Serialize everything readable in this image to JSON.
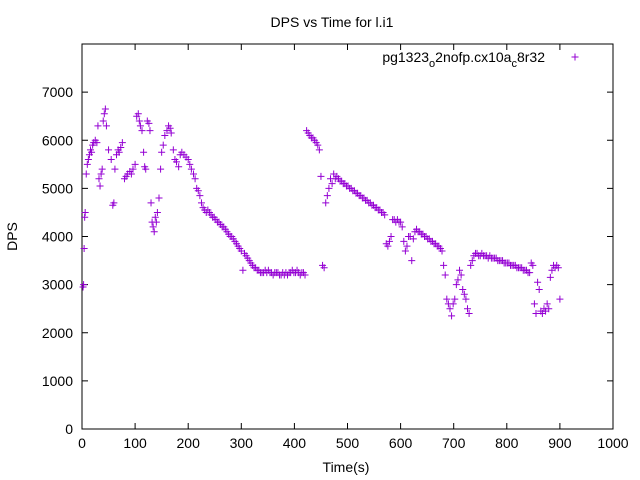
{
  "chart_data": {
    "type": "scatter",
    "title": "DPS vs Time for l.i1",
    "xlabel": "Time(s)",
    "ylabel": "DPS",
    "xlim": [
      0,
      1000
    ],
    "ylim": [
      0,
      8000
    ],
    "xticks": [
      0,
      100,
      200,
      300,
      400,
      500,
      600,
      700,
      800,
      900,
      1000
    ],
    "yticks": [
      0,
      1000,
      2000,
      3000,
      4000,
      5000,
      6000,
      7000
    ],
    "grid": false,
    "legend_position": "top-right",
    "marker": "+",
    "series": [
      {
        "name": "pg1323o2nofp.cx10ac8r32",
        "legend_parts": [
          {
            "text": "pg1323",
            "sub": false
          },
          {
            "text": "o",
            "sub": true
          },
          {
            "text": "2nofp.cx10a",
            "sub": false
          },
          {
            "text": "c",
            "sub": true
          },
          {
            "text": "8r32",
            "sub": false
          }
        ],
        "color": "#9400d3",
        "points": [
          [
            2,
            2950
          ],
          [
            3,
            3000
          ],
          [
            4,
            3750
          ],
          [
            5,
            4400
          ],
          [
            6,
            4500
          ],
          [
            8,
            5300
          ],
          [
            10,
            5500
          ],
          [
            12,
            5600
          ],
          [
            14,
            5700
          ],
          [
            16,
            5800
          ],
          [
            18,
            5750
          ],
          [
            20,
            5900
          ],
          [
            22,
            5950
          ],
          [
            25,
            6000
          ],
          [
            28,
            5950
          ],
          [
            30,
            6300
          ],
          [
            32,
            5200
          ],
          [
            34,
            5050
          ],
          [
            36,
            5300
          ],
          [
            38,
            5400
          ],
          [
            40,
            6400
          ],
          [
            42,
            6550
          ],
          [
            44,
            6650
          ],
          [
            46,
            6300
          ],
          [
            50,
            5800
          ],
          [
            55,
            5600
          ],
          [
            58,
            4650
          ],
          [
            60,
            4700
          ],
          [
            62,
            5400
          ],
          [
            65,
            5700
          ],
          [
            68,
            5800
          ],
          [
            70,
            5750
          ],
          [
            73,
            5850
          ],
          [
            76,
            5950
          ],
          [
            80,
            5200
          ],
          [
            83,
            5250
          ],
          [
            86,
            5300
          ],
          [
            90,
            5350
          ],
          [
            93,
            5300
          ],
          [
            96,
            5400
          ],
          [
            100,
            5500
          ],
          [
            103,
            6500
          ],
          [
            106,
            6550
          ],
          [
            108,
            6400
          ],
          [
            110,
            6300
          ],
          [
            113,
            6200
          ],
          [
            116,
            5750
          ],
          [
            118,
            5450
          ],
          [
            120,
            5400
          ],
          [
            123,
            6400
          ],
          [
            126,
            6350
          ],
          [
            128,
            6200
          ],
          [
            130,
            4700
          ],
          [
            132,
            4300
          ],
          [
            134,
            4200
          ],
          [
            136,
            4100
          ],
          [
            138,
            4400
          ],
          [
            140,
            4300
          ],
          [
            142,
            4500
          ],
          [
            145,
            4800
          ],
          [
            148,
            5400
          ],
          [
            150,
            5750
          ],
          [
            153,
            5900
          ],
          [
            156,
            6100
          ],
          [
            160,
            6200
          ],
          [
            163,
            6300
          ],
          [
            166,
            6250
          ],
          [
            168,
            6150
          ],
          [
            172,
            5800
          ],
          [
            175,
            5600
          ],
          [
            178,
            5550
          ],
          [
            182,
            5450
          ],
          [
            185,
            5700
          ],
          [
            188,
            5750
          ],
          [
            192,
            5700
          ],
          [
            196,
            5650
          ],
          [
            200,
            5600
          ],
          [
            203,
            5500
          ],
          [
            206,
            5400
          ],
          [
            210,
            5300
          ],
          [
            213,
            5200
          ],
          [
            216,
            5000
          ],
          [
            219,
            4950
          ],
          [
            222,
            4850
          ],
          [
            225,
            4700
          ],
          [
            228,
            4600
          ],
          [
            231,
            4550
          ],
          [
            234,
            4500
          ],
          [
            237,
            4550
          ],
          [
            240,
            4500
          ],
          [
            243,
            4450
          ],
          [
            246,
            4400
          ],
          [
            249,
            4400
          ],
          [
            252,
            4350
          ],
          [
            255,
            4300
          ],
          [
            258,
            4300
          ],
          [
            261,
            4250
          ],
          [
            264,
            4200
          ],
          [
            267,
            4200
          ],
          [
            270,
            4150
          ],
          [
            273,
            4100
          ],
          [
            276,
            4050
          ],
          [
            279,
            4000
          ],
          [
            282,
            4000
          ],
          [
            285,
            3950
          ],
          [
            288,
            3900
          ],
          [
            291,
            3850
          ],
          [
            294,
            3800
          ],
          [
            297,
            3750
          ],
          [
            300,
            3700
          ],
          [
            303,
            3300
          ],
          [
            306,
            3650
          ],
          [
            309,
            3600
          ],
          [
            312,
            3550
          ],
          [
            315,
            3500
          ],
          [
            318,
            3450
          ],
          [
            321,
            3400
          ],
          [
            324,
            3350
          ],
          [
            327,
            3350
          ],
          [
            330,
            3300
          ],
          [
            333,
            3300
          ],
          [
            336,
            3250
          ],
          [
            339,
            3250
          ],
          [
            342,
            3250
          ],
          [
            345,
            3300
          ],
          [
            348,
            3250
          ],
          [
            351,
            3300
          ],
          [
            354,
            3250
          ],
          [
            357,
            3250
          ],
          [
            360,
            3200
          ],
          [
            363,
            3250
          ],
          [
            366,
            3250
          ],
          [
            369,
            3250
          ],
          [
            372,
            3200
          ],
          [
            375,
            3200
          ],
          [
            378,
            3250
          ],
          [
            381,
            3200
          ],
          [
            384,
            3250
          ],
          [
            387,
            3200
          ],
          [
            390,
            3250
          ],
          [
            393,
            3250
          ],
          [
            396,
            3300
          ],
          [
            399,
            3250
          ],
          [
            402,
            3250
          ],
          [
            405,
            3300
          ],
          [
            408,
            3250
          ],
          [
            411,
            3200
          ],
          [
            414,
            3250
          ],
          [
            417,
            3250
          ],
          [
            420,
            3200
          ],
          [
            423,
            6200
          ],
          [
            426,
            6150
          ],
          [
            429,
            6100
          ],
          [
            432,
            6050
          ],
          [
            435,
            6050
          ],
          [
            438,
            6000
          ],
          [
            441,
            5950
          ],
          [
            444,
            5900
          ],
          [
            447,
            5800
          ],
          [
            450,
            5250
          ],
          [
            453,
            3400
          ],
          [
            456,
            3350
          ],
          [
            459,
            4700
          ],
          [
            462,
            4850
          ],
          [
            465,
            5000
          ],
          [
            468,
            5200
          ],
          [
            471,
            5100
          ],
          [
            474,
            5300
          ],
          [
            477,
            5200
          ],
          [
            480,
            5250
          ],
          [
            483,
            5200
          ],
          [
            486,
            5150
          ],
          [
            489,
            5150
          ],
          [
            492,
            5100
          ],
          [
            495,
            5100
          ],
          [
            498,
            5050
          ],
          [
            501,
            5050
          ],
          [
            504,
            5000
          ],
          [
            507,
            5000
          ],
          [
            510,
            4950
          ],
          [
            513,
            4950
          ],
          [
            516,
            4900
          ],
          [
            519,
            4900
          ],
          [
            522,
            4850
          ],
          [
            525,
            4850
          ],
          [
            528,
            4800
          ],
          [
            531,
            4800
          ],
          [
            534,
            4750
          ],
          [
            537,
            4750
          ],
          [
            540,
            4700
          ],
          [
            543,
            4700
          ],
          [
            546,
            4650
          ],
          [
            549,
            4650
          ],
          [
            552,
            4600
          ],
          [
            555,
            4600
          ],
          [
            558,
            4550
          ],
          [
            561,
            4550
          ],
          [
            564,
            4500
          ],
          [
            567,
            4500
          ],
          [
            570,
            4450
          ],
          [
            573,
            3850
          ],
          [
            576,
            3800
          ],
          [
            579,
            3900
          ],
          [
            582,
            4000
          ],
          [
            585,
            4350
          ],
          [
            588,
            4350
          ],
          [
            591,
            4300
          ],
          [
            594,
            4350
          ],
          [
            597,
            4300
          ],
          [
            600,
            4300
          ],
          [
            603,
            4200
          ],
          [
            606,
            3900
          ],
          [
            609,
            3700
          ],
          [
            612,
            3800
          ],
          [
            615,
            4000
          ],
          [
            618,
            4000
          ],
          [
            621,
            3500
          ],
          [
            624,
            3950
          ],
          [
            627,
            4100
          ],
          [
            630,
            4150
          ],
          [
            633,
            4100
          ],
          [
            636,
            4100
          ],
          [
            639,
            4050
          ],
          [
            642,
            4050
          ],
          [
            645,
            4000
          ],
          [
            648,
            4000
          ],
          [
            651,
            3950
          ],
          [
            654,
            3950
          ],
          [
            657,
            3900
          ],
          [
            660,
            3900
          ],
          [
            663,
            3850
          ],
          [
            666,
            3850
          ],
          [
            669,
            3800
          ],
          [
            672,
            3800
          ],
          [
            675,
            3750
          ],
          [
            678,
            3700
          ],
          [
            681,
            3400
          ],
          [
            684,
            3200
          ],
          [
            687,
            2700
          ],
          [
            690,
            2600
          ],
          [
            693,
            2500
          ],
          [
            696,
            2350
          ],
          [
            699,
            2600
          ],
          [
            702,
            2700
          ],
          [
            705,
            3000
          ],
          [
            708,
            3100
          ],
          [
            711,
            3300
          ],
          [
            714,
            3200
          ],
          [
            717,
            2900
          ],
          [
            720,
            2800
          ],
          [
            723,
            2700
          ],
          [
            726,
            2500
          ],
          [
            729,
            2400
          ],
          [
            732,
            3400
          ],
          [
            735,
            3500
          ],
          [
            738,
            3600
          ],
          [
            741,
            3650
          ],
          [
            744,
            3650
          ],
          [
            747,
            3600
          ],
          [
            750,
            3600
          ],
          [
            753,
            3650
          ],
          [
            756,
            3600
          ],
          [
            759,
            3600
          ],
          [
            762,
            3600
          ],
          [
            765,
            3550
          ],
          [
            768,
            3600
          ],
          [
            771,
            3550
          ],
          [
            774,
            3550
          ],
          [
            777,
            3550
          ],
          [
            780,
            3550
          ],
          [
            783,
            3500
          ],
          [
            786,
            3500
          ],
          [
            789,
            3500
          ],
          [
            792,
            3500
          ],
          [
            795,
            3450
          ],
          [
            798,
            3450
          ],
          [
            801,
            3450
          ],
          [
            804,
            3450
          ],
          [
            807,
            3400
          ],
          [
            810,
            3400
          ],
          [
            813,
            3400
          ],
          [
            816,
            3400
          ],
          [
            819,
            3350
          ],
          [
            822,
            3350
          ],
          [
            825,
            3350
          ],
          [
            828,
            3350
          ],
          [
            831,
            3300
          ],
          [
            834,
            3300
          ],
          [
            837,
            3300
          ],
          [
            840,
            3250
          ],
          [
            843,
            3250
          ],
          [
            846,
            3450
          ],
          [
            849,
            3400
          ],
          [
            852,
            2600
          ],
          [
            855,
            2400
          ],
          [
            858,
            3050
          ],
          [
            861,
            2900
          ],
          [
            864,
            2450
          ],
          [
            867,
            2400
          ],
          [
            870,
            2500
          ],
          [
            873,
            2450
          ],
          [
            876,
            2600
          ],
          [
            879,
            2500
          ],
          [
            882,
            3150
          ],
          [
            885,
            3300
          ],
          [
            888,
            3400
          ],
          [
            891,
            3350
          ],
          [
            894,
            3400
          ],
          [
            897,
            3350
          ],
          [
            900,
            2700
          ]
        ]
      }
    ]
  }
}
